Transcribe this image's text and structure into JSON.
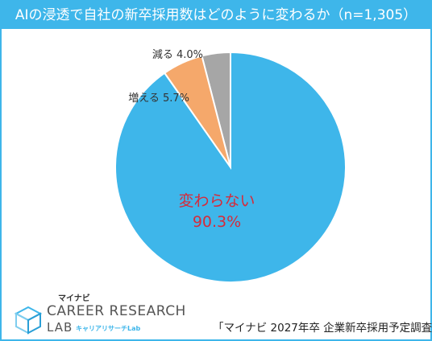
{
  "title": "AIの浸透で自社の新卒採用数はどのように変わるか（n=1,305）",
  "colors": {
    "accent": "#3eb6ea",
    "slice_same": "#3eb6ea",
    "slice_increase": "#f5a86b",
    "slice_decrease": "#a6a6a6",
    "label_main": "#d62b3a"
  },
  "chart_data": {
    "type": "pie",
    "title": "AIの浸透で自社の新卒採用数はどのように変わるか（n=1,305）",
    "slices": [
      {
        "label": "減る",
        "value": 4.0,
        "value_text": "4.0%",
        "color": "#a6a6a6"
      },
      {
        "label": "増える",
        "value": 5.7,
        "value_text": "5.7%",
        "color": "#f5a86b"
      },
      {
        "label": "変わらない",
        "value": 90.3,
        "value_text": "90.3%",
        "color": "#3eb6ea"
      }
    ],
    "start_angle_deg": 0,
    "direction": "counterclockwise"
  },
  "footer": {
    "source": "「マイナビ 2027年卒 企業新卒採用予定調査」"
  },
  "logo": {
    "small": "マイナビ",
    "line1": "CAREER RESEARCH",
    "line2": "LAB",
    "tag": "キャリアリサーチLab"
  }
}
